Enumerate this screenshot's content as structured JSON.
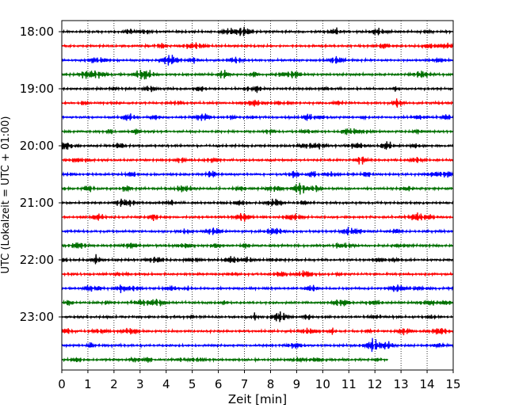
{
  "chart_data": {
    "type": "line",
    "title": "",
    "xlabel": "Zeit  [min]",
    "ylabel": "UTC (Lokalzeit = UTC + 01:00)",
    "xlim": [
      0,
      15
    ],
    "x_ticks": [
      "0",
      "1",
      "2",
      "3",
      "4",
      "5",
      "6",
      "7",
      "8",
      "9",
      "10",
      "11",
      "12",
      "13",
      "14",
      "15"
    ],
    "y_ticks": [
      "18:00",
      "19:00",
      "20:00",
      "21:00",
      "22:00",
      "23:00"
    ],
    "grid": "vertical dotted",
    "trace_interval_minutes": 15,
    "first_trace": "18:00",
    "last_trace_end_minute": 12.5,
    "trace_colors": [
      "#000000",
      "#ff0000",
      "#0000ff",
      "#007000"
    ],
    "trace_count": 24
  }
}
